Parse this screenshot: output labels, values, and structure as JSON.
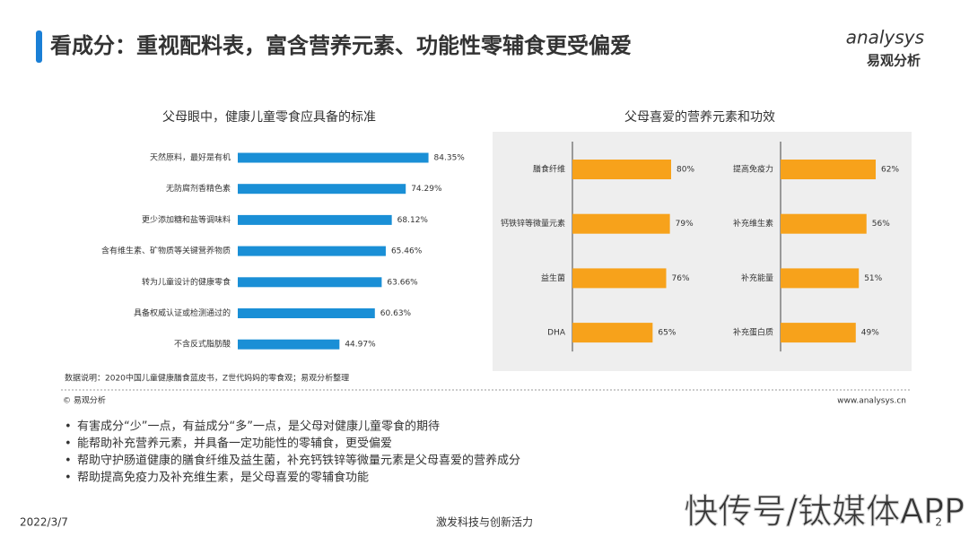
{
  "header": {
    "title": "看成分：重视配料表，富含营养元素、功能性零辅食更受偏爱",
    "logo_en": "analysys",
    "logo_cn": "易观分析"
  },
  "chart_data": [
    {
      "type": "bar",
      "orientation": "horizontal",
      "title": "父母眼中，健康儿童零食应具备的标准",
      "color": "#1a8fd6",
      "xlim": [
        0,
        100
      ],
      "categories": [
        "天然原料，最好是有机",
        "无防腐剂香精色素",
        "更少添加糖和盐等调味料",
        "含有维生素、矿物质等关键营养物质",
        "转为儿童设计的健康零食",
        "具备权威认证或检测通过的",
        "不含反式脂肪酸"
      ],
      "values": [
        84.35,
        74.29,
        68.12,
        65.46,
        63.66,
        60.63,
        44.97
      ],
      "value_labels": [
        "84.35%",
        "74.29%",
        "68.12%",
        "65.46%",
        "63.66%",
        "60.63%",
        "44.97%"
      ]
    },
    {
      "type": "bar",
      "orientation": "horizontal",
      "title": "父母喜爱的营养元素和功效",
      "color": "#f7a21b",
      "xlim": [
        0,
        100
      ],
      "categories": [
        "膳食纤维",
        "钙铁锌等微量元素",
        "益生菌",
        "DHA"
      ],
      "values": [
        80,
        79,
        76,
        65
      ],
      "value_labels": [
        "80%",
        "79%",
        "76%",
        "65%"
      ]
    },
    {
      "type": "bar",
      "orientation": "horizontal",
      "color": "#f7a21b",
      "xlim": [
        0,
        100
      ],
      "categories": [
        "提高免疫力",
        "补充维生素",
        "补充能量",
        "补充蛋白质"
      ],
      "values": [
        62,
        56,
        51,
        49
      ],
      "value_labels": [
        "62%",
        "56%",
        "51%",
        "49%"
      ]
    }
  ],
  "source": "数据说明：2020中国儿童健康膳食蓝皮书，Z世代妈妈的零食观；易观分析整理",
  "copyright": "© 易观分析",
  "website": "www.analysys.cn",
  "bullets": [
    "有害成分“少”一点，有益成分“多”一点，是父母对健康儿童零食的期待",
    "能帮助补充营养元素，并具备一定功能性的零辅食，更受偏爱",
    "帮助守护肠道健康的膳食纤维及益生菌，补充钙铁锌等微量元素是父母喜爱的营养成分",
    "帮助提高免疫力及补充维生素，是父母喜爱的零辅食功能"
  ],
  "footer": {
    "date": "2022/3/7",
    "slogan": "激发科技与创新活力",
    "page": "2"
  },
  "watermark": "快传号/钛媒体APP"
}
